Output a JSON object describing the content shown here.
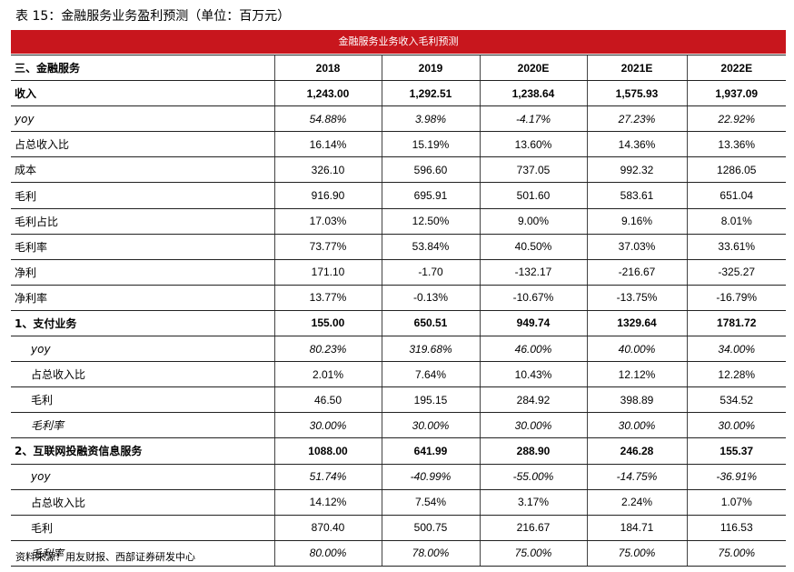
{
  "title": "表 15：金融服务业务盈利预测（单位：百万元）",
  "banner": "金融服务业务收入毛利预测",
  "colors": {
    "banner_bg": "#c8161d",
    "banner_text": "#ffffff"
  },
  "table": {
    "headers": [
      "三、金融服务",
      "2018",
      "2019",
      "2020E",
      "2021E",
      "2022E"
    ],
    "rows": [
      {
        "label": "收入",
        "values": [
          "1,243.00",
          "1,292.51",
          "1,238.64",
          "1,575.93",
          "1,937.09"
        ]
      },
      {
        "label": "yoy",
        "values": [
          "54.88%",
          "3.98%",
          "-4.17%",
          "27.23%",
          "22.92%"
        ]
      },
      {
        "label": "占总收入比",
        "values": [
          "16.14%",
          "15.19%",
          "13.60%",
          "14.36%",
          "13.36%"
        ]
      },
      {
        "label": "成本",
        "values": [
          "326.10",
          "596.60",
          "737.05",
          "992.32",
          "1286.05"
        ]
      },
      {
        "label": "毛利",
        "values": [
          "916.90",
          "695.91",
          "501.60",
          "583.61",
          "651.04"
        ]
      },
      {
        "label": "毛利占比",
        "values": [
          "17.03%",
          "12.50%",
          "9.00%",
          "9.16%",
          "8.01%"
        ]
      },
      {
        "label": "毛利率",
        "values": [
          "73.77%",
          "53.84%",
          "40.50%",
          "37.03%",
          "33.61%"
        ]
      },
      {
        "label": "净利",
        "values": [
          "171.10",
          "-1.70",
          "-132.17",
          "-216.67",
          "-325.27"
        ]
      },
      {
        "label": "净利率",
        "values": [
          "13.77%",
          "-0.13%",
          "-10.67%",
          "-13.75%",
          "-16.79%"
        ]
      },
      {
        "label": "1、支付业务",
        "values": [
          "155.00",
          "650.51",
          "949.74",
          "1329.64",
          "1781.72"
        ]
      },
      {
        "label": "yoy",
        "values": [
          "80.23%",
          "319.68%",
          "46.00%",
          "40.00%",
          "34.00%"
        ]
      },
      {
        "label": "占总收入比",
        "values": [
          "2.01%",
          "7.64%",
          "10.43%",
          "12.12%",
          "12.28%"
        ]
      },
      {
        "label": "毛利",
        "values": [
          "46.50",
          "195.15",
          "284.92",
          "398.89",
          "534.52"
        ]
      },
      {
        "label": "毛利率",
        "values": [
          "30.00%",
          "30.00%",
          "30.00%",
          "30.00%",
          "30.00%"
        ]
      },
      {
        "label": "2、互联网投融资信息服务",
        "values": [
          "1088.00",
          "641.99",
          "288.90",
          "246.28",
          "155.37"
        ]
      },
      {
        "label": "yoy",
        "values": [
          "51.74%",
          "-40.99%",
          "-55.00%",
          "-14.75%",
          "-36.91%"
        ]
      },
      {
        "label": "占总收入比",
        "values": [
          "14.12%",
          "7.54%",
          "3.17%",
          "2.24%",
          "1.07%"
        ]
      },
      {
        "label": "毛利",
        "values": [
          "870.40",
          "500.75",
          "216.67",
          "184.71",
          "116.53"
        ]
      },
      {
        "label": "毛利率",
        "values": [
          "80.00%",
          "78.00%",
          "75.00%",
          "75.00%",
          "75.00%"
        ]
      }
    ]
  },
  "source": "资料来源：用友财报、西部证券研发中心"
}
